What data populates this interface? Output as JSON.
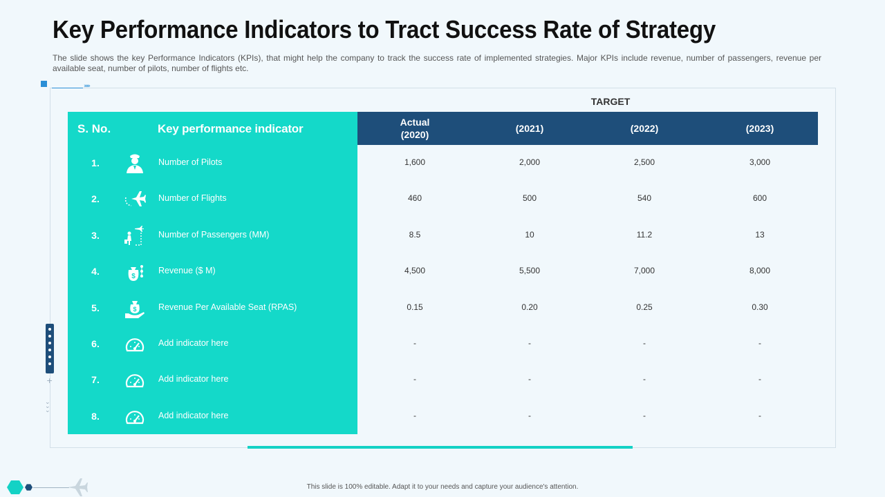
{
  "title": "Key Performance Indicators to Tract Success Rate of Strategy",
  "subtitle": "The slide shows the key Performance Indicators (KPIs), that might help the company to track the success rate of implemented strategies. Major KPIs include revenue, number of passengers, revenue per available seat, number of pilots, number of flights etc.",
  "table": {
    "target_label": "TARGET",
    "headers": {
      "sno": "S. No.",
      "kpi": "Key performance indicator",
      "actual": "Actual (2020)",
      "y2021": "(2021)",
      "y2022": "(2022)",
      "y2023": "(2023)"
    },
    "rows": [
      {
        "num": "1.",
        "icon": "pilot-icon",
        "label": "Number of Pilots",
        "values": [
          "1,600",
          "2,000",
          "2,500",
          "3,000"
        ]
      },
      {
        "num": "2.",
        "icon": "airplane-icon",
        "label": "Number of Flights",
        "values": [
          "460",
          "500",
          "540",
          "600"
        ]
      },
      {
        "num": "3.",
        "icon": "passenger-icon",
        "label": "Number of Passengers (MM)",
        "values": [
          "8.5",
          "10",
          "11.2",
          "13"
        ]
      },
      {
        "num": "4.",
        "icon": "revenue-icon",
        "label": "Revenue ($ M)",
        "values": [
          "4,500",
          "5,500",
          "7,000",
          "8,000"
        ]
      },
      {
        "num": "5.",
        "icon": "money-bag-hand-icon",
        "label": "Revenue Per Available Seat (RPAS)",
        "values": [
          "0.15",
          "0.20",
          "0.25",
          "0.30"
        ]
      },
      {
        "num": "6.",
        "icon": "speedometer-icon",
        "label": "Add indicator here",
        "values": [
          "-",
          "-",
          "-",
          "-"
        ]
      },
      {
        "num": "7.",
        "icon": "speedometer-icon",
        "label": "Add indicator here",
        "values": [
          "-",
          "-",
          "-",
          "-"
        ]
      },
      {
        "num": "8.",
        "icon": "speedometer-icon",
        "label": "Add indicator here",
        "values": [
          "-",
          "-",
          "-",
          "-"
        ]
      }
    ]
  },
  "footer": "This slide is 100% editable. Adapt it to your needs and capture your audience's attention.",
  "colors": {
    "teal": "#14d9c9",
    "navy": "#1e4e7a",
    "background": "#f1f8fc"
  }
}
